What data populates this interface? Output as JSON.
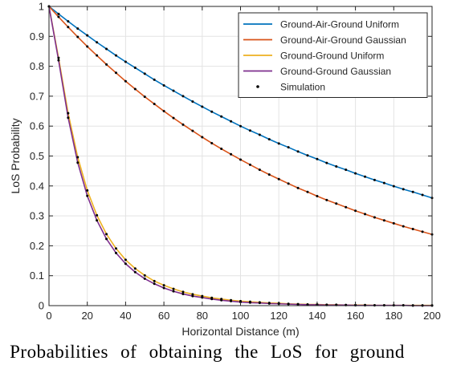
{
  "chart_data": {
    "type": "line",
    "title": "",
    "xlabel": "Horizontal Distance (m)",
    "ylabel": "LoS Probability",
    "xlim": [
      0,
      200
    ],
    "ylim": [
      0,
      1
    ],
    "xticks": [
      0,
      20,
      40,
      60,
      80,
      100,
      120,
      140,
      160,
      180,
      200
    ],
    "yticks": [
      0,
      0.1,
      0.2,
      0.3,
      0.4,
      0.5,
      0.6,
      0.7,
      0.8,
      0.9,
      1
    ],
    "grid": true,
    "legend_position": "top-right",
    "x": [
      0,
      5,
      10,
      15,
      20,
      25,
      30,
      35,
      40,
      45,
      50,
      55,
      60,
      65,
      70,
      75,
      80,
      85,
      90,
      95,
      100,
      105,
      110,
      115,
      120,
      125,
      130,
      135,
      140,
      145,
      150,
      155,
      160,
      165,
      170,
      175,
      180,
      185,
      190,
      195,
      200
    ],
    "series": [
      {
        "name": "Ground-Air-Ground Uniform",
        "color": "#0072bd",
        "style": "line",
        "values": [
          1.0,
          0.975,
          0.95,
          0.926,
          0.903,
          0.88,
          0.858,
          0.836,
          0.815,
          0.795,
          0.775,
          0.755,
          0.736,
          0.718,
          0.7,
          0.682,
          0.665,
          0.648,
          0.632,
          0.616,
          0.6,
          0.585,
          0.571,
          0.556,
          0.542,
          0.529,
          0.515,
          0.502,
          0.49,
          0.477,
          0.465,
          0.454,
          0.442,
          0.431,
          0.42,
          0.41,
          0.399,
          0.389,
          0.38,
          0.37,
          0.36
        ]
      },
      {
        "name": "Ground-Air-Ground Gaussian",
        "color": "#d95319",
        "style": "line",
        "values": [
          1.0,
          0.965,
          0.931,
          0.898,
          0.866,
          0.836,
          0.806,
          0.778,
          0.75,
          0.724,
          0.698,
          0.674,
          0.65,
          0.627,
          0.605,
          0.584,
          0.563,
          0.543,
          0.524,
          0.506,
          0.488,
          0.471,
          0.454,
          0.438,
          0.423,
          0.408,
          0.393,
          0.38,
          0.366,
          0.353,
          0.341,
          0.329,
          0.317,
          0.306,
          0.295,
          0.285,
          0.275,
          0.265,
          0.256,
          0.247,
          0.238
        ]
      },
      {
        "name": "Ground-Ground Uniform",
        "color": "#edb120",
        "style": "line",
        "values": [
          1.0,
          0.828,
          0.643,
          0.496,
          0.385,
          0.302,
          0.239,
          0.191,
          0.153,
          0.124,
          0.101,
          0.082,
          0.068,
          0.056,
          0.046,
          0.038,
          0.032,
          0.026,
          0.022,
          0.018,
          0.015,
          0.013,
          0.011,
          0.009,
          0.008,
          0.006,
          0.005,
          0.004,
          0.004,
          0.003,
          0.003,
          0.002,
          0.002,
          0.002,
          0.001,
          0.001,
          0.001,
          0.001,
          0.001,
          0.001,
          0.001
        ]
      },
      {
        "name": "Ground-Ground Gaussian",
        "color": "#7e2f8e",
        "style": "line",
        "values": [
          1.0,
          0.82,
          0.628,
          0.478,
          0.367,
          0.285,
          0.223,
          0.176,
          0.14,
          0.112,
          0.09,
          0.073,
          0.059,
          0.048,
          0.039,
          0.032,
          0.027,
          0.022,
          0.018,
          0.015,
          0.012,
          0.01,
          0.009,
          0.007,
          0.006,
          0.005,
          0.004,
          0.003,
          0.003,
          0.002,
          0.002,
          0.002,
          0.001,
          0.001,
          0.001,
          0.001,
          0.001,
          0.001,
          0,
          0,
          0
        ]
      },
      {
        "name": "Simulation",
        "color": "#000000",
        "style": "markers"
      }
    ]
  },
  "caption": "3:  Probabilities  of  obtaining  the  LoS  for  ground"
}
